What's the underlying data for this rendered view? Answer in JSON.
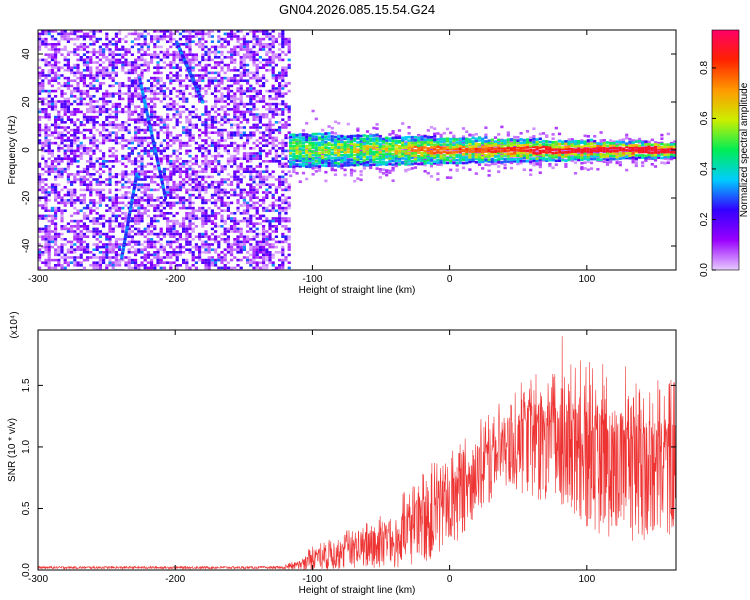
{
  "title": "GN04.2026.085.15.54.G24",
  "chart_data": [
    {
      "type": "heatmap",
      "name": "spectrogram",
      "xlabel": "Height of straight line (km)",
      "ylabel": "Frequency (Hz)",
      "xlim": [
        -300,
        165
      ],
      "ylim": [
        -50,
        50
      ],
      "xticks": [
        -300,
        -200,
        -100,
        0,
        100
      ],
      "yticks": [
        -40,
        -20,
        0,
        20,
        40
      ],
      "noise_region_x": [
        -300,
        -117
      ],
      "signal_band_center_hz": 0,
      "signal_start_x": -117,
      "interference_tracks": [
        {
          "x": [
            -226,
            -207
          ],
          "y": [
            30,
            -20
          ]
        },
        {
          "x": [
            -239,
            -228
          ],
          "y": [
            -45,
            -10
          ]
        },
        {
          "x": [
            -199,
            -180
          ],
          "y": [
            45,
            20
          ]
        }
      ],
      "colorbar": {
        "label": "Normalized spectral amplitude",
        "range": [
          0,
          0.95
        ],
        "ticks": [
          0.0,
          0.2,
          0.4,
          0.6,
          0.8
        ],
        "colors": [
          "#e8ccff",
          "#9900ff",
          "#3300ff",
          "#00ccff",
          "#00ee55",
          "#ccee00",
          "#ff9900",
          "#ff2200",
          "#ff0066"
        ]
      }
    },
    {
      "type": "line",
      "name": "snr",
      "xlabel": "Height of straight line (km)",
      "ylabel": "SNR (10 * v/v)",
      "multiplier_label": "(x10⁴)",
      "xlim": [
        -300,
        165
      ],
      "ylim": [
        0,
        1.95
      ],
      "xticks": [
        -300,
        -200,
        -100,
        0,
        100
      ],
      "yticks": [
        0.0,
        0.5,
        1.0,
        1.5
      ],
      "color": "#ee3333",
      "envelope": {
        "x": [
          -300,
          -120,
          -110,
          -100,
          -80,
          -60,
          -40,
          -20,
          0,
          20,
          40,
          60,
          80,
          100,
          120,
          140,
          165
        ],
        "lower": [
          0.0,
          0.0,
          0.0,
          0.0,
          0.0,
          0.0,
          0.0,
          0.05,
          0.15,
          0.45,
          0.65,
          0.6,
          0.45,
          0.3,
          0.25,
          0.2,
          0.3
        ],
        "upper": [
          0.04,
          0.04,
          0.1,
          0.2,
          0.3,
          0.4,
          0.55,
          0.8,
          1.0,
          1.2,
          1.4,
          1.6,
          1.65,
          1.75,
          1.7,
          1.6,
          1.55
        ]
      }
    }
  ]
}
